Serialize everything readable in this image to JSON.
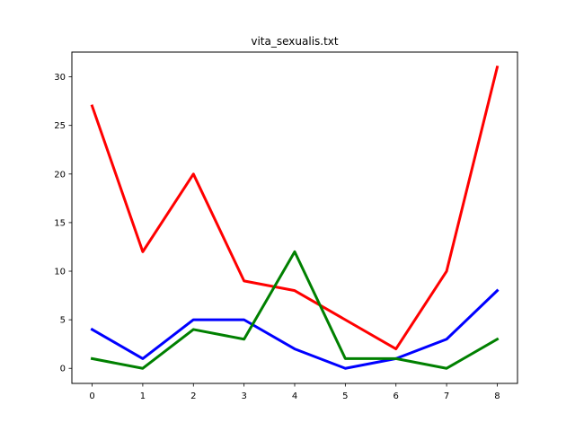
{
  "chart_data": {
    "type": "line",
    "title": "vita_sexualis.txt",
    "xlabel": "",
    "ylabel": "",
    "x": [
      0,
      1,
      2,
      3,
      4,
      5,
      6,
      7,
      8
    ],
    "xlim": [
      -0.4,
      8.4
    ],
    "ylim": [
      -1.55,
      32.55
    ],
    "xticks": [
      0,
      1,
      2,
      3,
      4,
      5,
      6,
      7,
      8
    ],
    "yticks": [
      0,
      5,
      10,
      15,
      20,
      25,
      30
    ],
    "grid": false,
    "legend": "none",
    "series": [
      {
        "color": "#ff0000",
        "values": [
          27,
          12,
          20,
          9,
          8,
          5,
          2,
          10,
          31
        ]
      },
      {
        "color": "#0000ff",
        "values": [
          4,
          1,
          5,
          5,
          2,
          0,
          1,
          3,
          8
        ]
      },
      {
        "color": "#008000",
        "values": [
          1,
          0,
          4,
          3,
          12,
          1,
          1,
          0,
          3
        ]
      }
    ]
  }
}
